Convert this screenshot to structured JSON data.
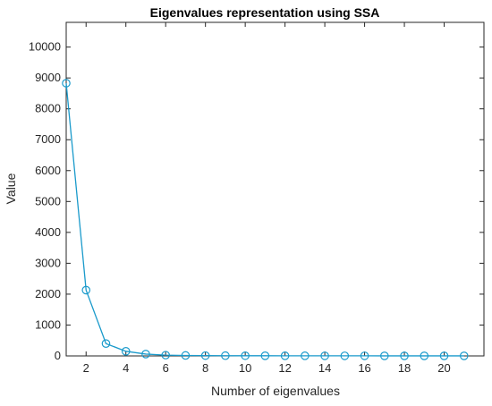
{
  "chart_data": {
    "type": "line",
    "title": "Eigenvalues representation using SSA",
    "xlabel": "Number of eigenvalues",
    "ylabel": "Value",
    "xlim": [
      1,
      22
    ],
    "ylim": [
      0,
      10800
    ],
    "x_ticks": [
      2,
      4,
      6,
      8,
      10,
      12,
      14,
      16,
      18,
      20
    ],
    "y_ticks": [
      0,
      1000,
      2000,
      3000,
      4000,
      5000,
      6000,
      7000,
      8000,
      9000,
      10000
    ],
    "grid": false,
    "series": [
      {
        "marker": "circle",
        "color": "#1a9acb",
        "x": [
          1,
          2,
          3,
          4,
          5,
          6,
          7,
          8,
          9,
          10,
          11,
          12,
          13,
          14,
          15,
          16,
          17,
          18,
          19,
          20,
          21
        ],
        "values": [
          8830,
          2130,
          400,
          150,
          60,
          25,
          15,
          10,
          8,
          6,
          5,
          4,
          4,
          3,
          3,
          3,
          2,
          2,
          2,
          2,
          2
        ]
      }
    ]
  }
}
